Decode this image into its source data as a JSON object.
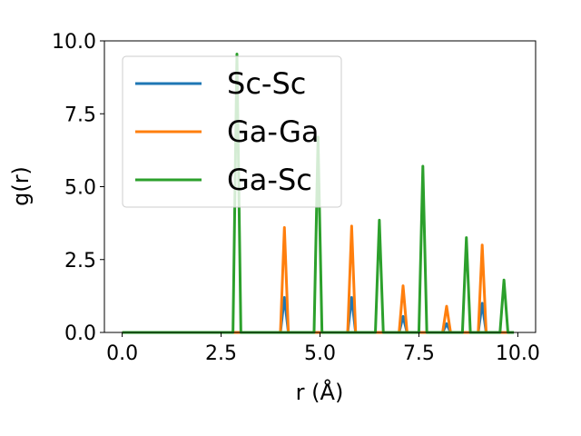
{
  "chart_data": {
    "type": "line",
    "xlabel": "r (Å)",
    "ylabel": "g(r)",
    "xlim": [
      -0.45,
      10.45
    ],
    "ylim": [
      0,
      10
    ],
    "xticks": [
      0.0,
      2.5,
      5.0,
      7.5,
      10.0
    ],
    "xtick_labels": [
      "0.0",
      "2.5",
      "5.0",
      "7.5",
      "10.0"
    ],
    "yticks": [
      0.0,
      2.5,
      5.0,
      7.5,
      10.0
    ],
    "ytick_labels": [
      "0.0",
      "2.5",
      "5.0",
      "7.5",
      "10.0"
    ],
    "grid": false,
    "legend_position": "upper-left",
    "x_start": 0.0,
    "x_end": 9.9,
    "series": [
      {
        "name": "Sc-Sc",
        "color": "#1f77b4",
        "peaks": [
          [
            4.1,
            1.2
          ],
          [
            5.8,
            1.2
          ],
          [
            7.1,
            0.55
          ],
          [
            8.2,
            0.3
          ],
          [
            9.1,
            1.0
          ]
        ]
      },
      {
        "name": "Ga-Ga",
        "color": "#ff7f0e",
        "peaks": [
          [
            4.1,
            3.6
          ],
          [
            5.8,
            3.65
          ],
          [
            7.1,
            1.6
          ],
          [
            8.2,
            0.9
          ],
          [
            9.1,
            3.0
          ]
        ]
      },
      {
        "name": "Ga-Sc",
        "color": "#2ca02c",
        "peaks": [
          [
            2.9,
            9.55
          ],
          [
            4.95,
            6.7
          ],
          [
            6.5,
            3.85
          ],
          [
            7.6,
            5.7
          ],
          [
            8.7,
            3.25
          ],
          [
            9.65,
            1.8
          ]
        ]
      }
    ]
  }
}
